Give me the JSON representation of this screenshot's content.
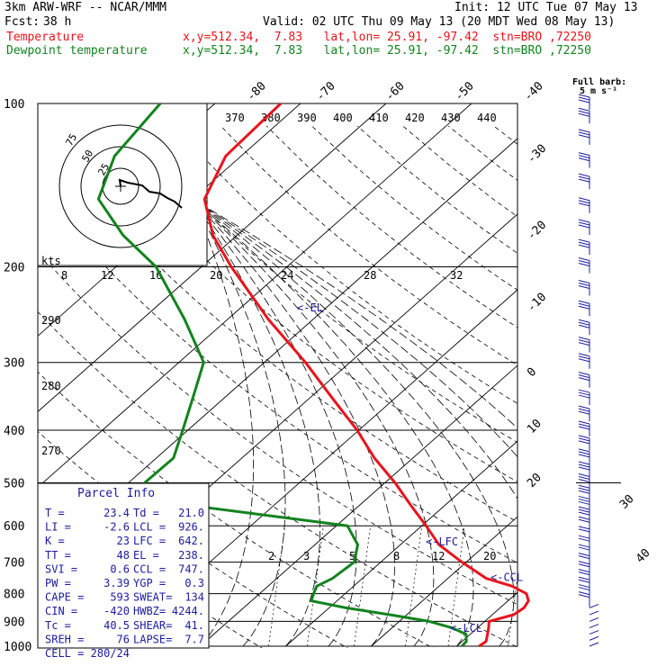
{
  "header": {
    "model": "3km ARW-WRF -- NCAR/MMM",
    "init": "Init: 12 UTC Tue 07 May 13",
    "fcst_label": "Fcst:",
    "fcst_value": "38 h",
    "valid": "Valid: 02 UTC Thu 09 May 13 (20 MDT Wed 08 May 13)"
  },
  "legend": {
    "temperature": {
      "name": "Temperature",
      "info": "x,y=512.34,  7.83   lat,lon= 25.91, -97.42  stn=BRO ,72250",
      "color": "#e8141c"
    },
    "dewpoint": {
      "name": "Dewpoint temperature",
      "info": "x,y=512.34,  7.83   lat,lon= 25.91, -97.42  stn=BRO ,72250",
      "color": "#12831e"
    }
  },
  "wind_label": {
    "line1": "Full barb:",
    "line2": "5 m s⁻¹"
  },
  "hodograph": {
    "units": "kts",
    "ring_labels": [
      "25",
      "50",
      "75"
    ]
  },
  "parcel_info": {
    "title": "Parcel Info",
    "rows": [
      [
        "T  =",
        "23.4",
        "Td =",
        "21.0"
      ],
      [
        "LI =",
        "-2.6",
        "LCL =",
        "926."
      ],
      [
        "K  =",
        "23",
        "LFC =",
        "642."
      ],
      [
        "TT =",
        "48",
        "EL =",
        "238."
      ],
      [
        "SVI =",
        "0.6",
        "CCL =",
        "747."
      ],
      [
        "PW =",
        "3.39",
        "YGP =",
        "0.3"
      ],
      [
        "CAPE =",
        "593",
        "SWEAT=",
        "134"
      ],
      [
        "CIN =",
        "-420",
        "HWBZ=",
        "4244."
      ],
      [
        "Tc =",
        "40.5",
        "SHEAR=",
        "41."
      ],
      [
        "SREH =",
        "76",
        "LAPSE=",
        "7.7"
      ],
      [
        "CELL =",
        "280/24",
        "",
        ""
      ]
    ]
  },
  "chart_data": {
    "type": "line",
    "diagram": "skew-T log-p",
    "y_axis": {
      "label": "",
      "scale": "log",
      "range_hpa": [
        1000,
        100
      ],
      "ticks": [
        100,
        200,
        300,
        400,
        500,
        600,
        700,
        800,
        900,
        1000
      ]
    },
    "isotherm_labels_c": [
      -80,
      -70,
      -60,
      -50,
      -40,
      -30,
      -20,
      -10,
      0,
      10,
      20,
      30,
      40
    ],
    "theta_labels_k": [
      370,
      380,
      390,
      400,
      410,
      420,
      430,
      440
    ],
    "theta_e_labels": [
      290,
      280,
      270
    ],
    "mixing_ratio_labels": [
      2,
      3,
      5,
      8,
      12,
      20
    ],
    "theta_e_scale_labels": [
      8,
      12,
      16,
      20,
      24,
      28,
      32
    ],
    "level_markers": [
      {
        "label": "<-EL",
        "p": 238
      },
      {
        "label": "<-LFC",
        "p": 642
      },
      {
        "label": "<-CCL",
        "p": 747
      },
      {
        "label": "<-LCL",
        "p": 926
      }
    ],
    "series": [
      {
        "name": "Temperature",
        "color": "#e8141c",
        "p": [
          1000,
          980,
          950,
          925,
          900,
          875,
          850,
          825,
          800,
          775,
          750,
          700,
          650,
          600,
          550,
          500,
          450,
          400,
          350,
          300,
          250,
          200,
          175,
          150,
          125,
          100
        ],
        "t": [
          22.6,
          22.8,
          22.0,
          21.3,
          20.5,
          22.5,
          22.8,
          22.4,
          21.2,
          18.5,
          14.5,
          9.5,
          4.5,
          0.5,
          -4.0,
          -8.8,
          -14.5,
          -20.2,
          -27.2,
          -35.2,
          -45.2,
          -56.5,
          -62.8,
          -68.6,
          -71.8,
          -72.3
        ]
      },
      {
        "name": "Dewpoint temperature",
        "color": "#12831e",
        "p": [
          1000,
          980,
          950,
          925,
          900,
          875,
          850,
          825,
          800,
          775,
          750,
          700,
          650,
          600,
          550,
          500,
          450,
          400,
          350,
          300,
          250,
          200,
          175,
          150,
          125,
          100
        ],
        "t": [
          20.6,
          20.5,
          19.5,
          17.0,
          13.5,
          8.0,
          2.0,
          -3.0,
          -3.7,
          -4.3,
          -3.5,
          -3.1,
          -5.0,
          -8.7,
          -30.0,
          -38.1,
          -38.0,
          -40.6,
          -43.6,
          -47.1,
          -55.0,
          -65.3,
          -73.3,
          -81.0,
          -84.8,
          -86.4
        ]
      }
    ],
    "wind_barbs_p_hpa": [
      1000,
      975,
      950,
      925,
      900,
      875,
      850,
      825,
      800,
      775,
      750,
      725,
      700,
      675,
      650,
      625,
      600,
      575,
      550,
      525,
      500,
      475,
      450,
      425,
      400,
      375,
      350,
      325,
      300,
      280,
      260,
      240,
      220,
      200,
      185,
      170,
      155,
      140,
      128,
      116,
      106,
      100
    ]
  }
}
